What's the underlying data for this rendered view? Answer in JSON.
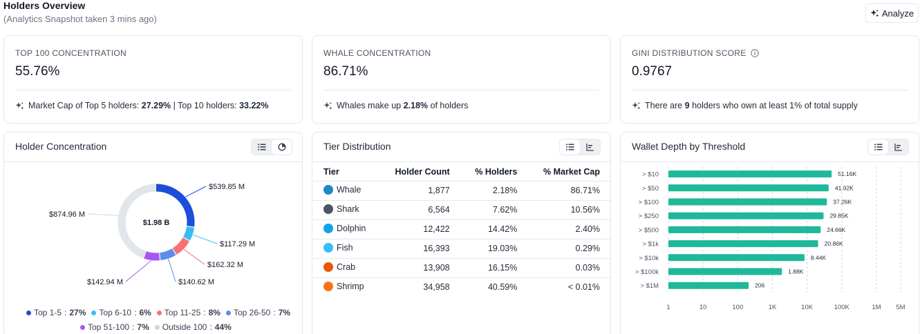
{
  "header": {
    "title": "Holders Overview",
    "subtitle": "(Analytics Snapshot taken 3 mins ago)",
    "analyze_label": "Analyze"
  },
  "stats": [
    {
      "label": "TOP 100 CONCENTRATION",
      "value": "55.76%",
      "foot": [
        "Market Cap of Top 5 holders: ",
        "27.29%",
        " | Top 10 holders: ",
        "33.22%",
        ""
      ]
    },
    {
      "label": "WHALE CONCENTRATION",
      "value": "86.71%",
      "foot": [
        "Whales make up ",
        "2.18%",
        " of holders",
        "",
        ""
      ]
    },
    {
      "label": "GINI DISTRIBUTION SCORE",
      "value": "0.9767",
      "foot": [
        "There are ",
        "9",
        " holders who own at least 1% of total supply",
        "",
        ""
      ]
    }
  ],
  "concentration": {
    "title": "Holder Concentration",
    "center_label": "$1.98 B",
    "slices": [
      {
        "name": "Top 1-5",
        "pct": "27%",
        "value": 27,
        "amount": "$539.85 M",
        "color": "#1d4ed8"
      },
      {
        "name": "Top 6-10",
        "pct": "6%",
        "value": 6,
        "amount": "$117.29 M",
        "color": "#38bdf8"
      },
      {
        "name": "Top 11-25",
        "pct": "8%",
        "value": 8,
        "amount": "$162.32 M",
        "color": "#f87171"
      },
      {
        "name": "Top 26-50",
        "pct": "7%",
        "value": 7,
        "amount": "$140.62 M",
        "color": "#5b8def"
      },
      {
        "name": "Top 51-100",
        "pct": "7%",
        "value": 7,
        "amount": "$142.94 M",
        "color": "#a855f7"
      },
      {
        "name": "Outside 100",
        "pct": "44%",
        "value": 44,
        "amount": "$874.96 M",
        "color": "#e5e7eb"
      }
    ]
  },
  "tiers": {
    "title": "Tier Distribution",
    "columns": [
      "Tier",
      "Holder Count",
      "% Holders",
      "% Market Cap"
    ],
    "rows": [
      {
        "tier": "Whale",
        "count": "1,877",
        "holders": "2.18%",
        "mcap": "86.71%",
        "icon": "whale-icon",
        "color": "#1e88c8"
      },
      {
        "tier": "Shark",
        "count": "6,564",
        "holders": "7.62%",
        "mcap": "10.56%",
        "icon": "shark-icon",
        "color": "#4b5563"
      },
      {
        "tier": "Dolphin",
        "count": "12,422",
        "holders": "14.42%",
        "mcap": "2.40%",
        "icon": "dolphin-icon",
        "color": "#0ea5e9"
      },
      {
        "tier": "Fish",
        "count": "16,393",
        "holders": "19.03%",
        "mcap": "0.29%",
        "icon": "fish-icon",
        "color": "#38bdf8"
      },
      {
        "tier": "Crab",
        "count": "13,908",
        "holders": "16.15%",
        "mcap": "0.03%",
        "icon": "crab-icon",
        "color": "#ea580c"
      },
      {
        "tier": "Shrimp",
        "count": "34,958",
        "holders": "40.59%",
        "mcap": "< 0.01%",
        "icon": "shrimp-icon",
        "color": "#f97316"
      }
    ]
  },
  "chart_data": {
    "type": "bar",
    "title": "Wallet Depth by Threshold",
    "orientation": "horizontal",
    "scale": "log",
    "categories": [
      "> $10",
      "> $50",
      "> $100",
      "> $250",
      "> $500",
      "> $1k",
      "> $10k",
      "> $100k",
      "> $1M"
    ],
    "values": [
      51160,
      41920,
      37260,
      29850,
      24660,
      20860,
      8440,
      1880,
      206
    ],
    "labels": [
      "51.16K",
      "41.92K",
      "37.26K",
      "29.85K",
      "24.66K",
      "20.86K",
      "8.44K",
      "1.88K",
      "206"
    ],
    "xticks": [
      1,
      10,
      100,
      1000,
      10000,
      100000,
      1000000,
      5000000
    ],
    "xtick_labels": [
      "1",
      "10",
      "100",
      "1K",
      "10K",
      "100K",
      "1M",
      "5M"
    ],
    "xlim": [
      1,
      5000000
    ],
    "color": "#1fb89a",
    "grid": true
  }
}
